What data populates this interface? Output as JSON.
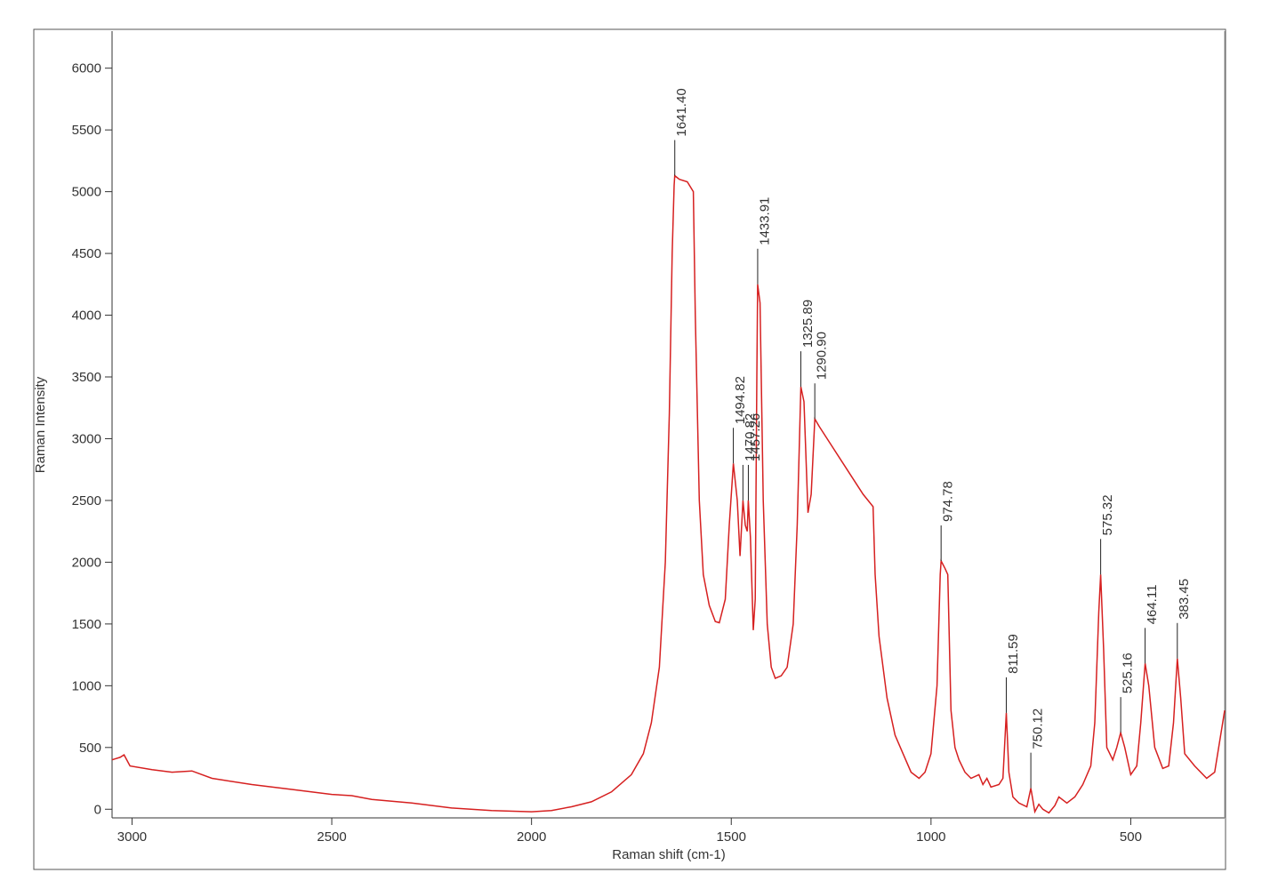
{
  "chart_data": {
    "type": "line",
    "x_label": "Raman shift (cm-1)",
    "y_label": "Raman Intensity",
    "xlim": [
      3050,
      265
    ],
    "ylim": [
      -70,
      6300
    ],
    "xticks": [
      3000,
      2500,
      2000,
      1500,
      1000,
      500
    ],
    "yticks": [
      0,
      500,
      1000,
      1500,
      2000,
      2500,
      3000,
      3500,
      4000,
      4500,
      5000,
      5500,
      6000
    ],
    "x": [
      3050,
      3030,
      3020,
      3005,
      2950,
      2900,
      2850,
      2800,
      2700,
      2600,
      2500,
      2450,
      2400,
      2300,
      2200,
      2100,
      2000,
      1950,
      1900,
      1850,
      1800,
      1750,
      1720,
      1700,
      1680,
      1665,
      1655,
      1648,
      1643,
      1641.4,
      1630,
      1610,
      1595,
      1590,
      1580,
      1570,
      1555,
      1540,
      1530,
      1515,
      1505,
      1494.8,
      1485,
      1478,
      1470.8,
      1465,
      1460,
      1457.3,
      1452,
      1445,
      1440,
      1436,
      1433.9,
      1428,
      1420,
      1410,
      1400,
      1390,
      1375,
      1360,
      1345,
      1335,
      1325.9,
      1318,
      1308,
      1300,
      1290.9,
      1280,
      1250,
      1200,
      1170,
      1145,
      1140,
      1130,
      1110,
      1090,
      1070,
      1050,
      1030,
      1015,
      1000,
      985,
      977,
      974.8,
      965,
      958,
      950,
      940,
      930,
      915,
      900,
      880,
      870,
      860,
      850,
      830,
      820,
      811.6,
      805,
      795,
      780,
      760,
      750.1,
      740,
      730,
      720,
      705,
      690,
      680,
      660,
      640,
      620,
      600,
      590,
      580,
      575.3,
      568,
      560,
      545,
      535,
      525.2,
      515,
      500,
      485,
      475,
      464.1,
      455,
      440,
      420,
      405,
      393,
      383.5,
      375,
      365,
      340,
      310,
      290,
      270,
      265
    ],
    "series": [
      {
        "color": "#d62020",
        "values": [
          400,
          420,
          440,
          350,
          320,
          300,
          310,
          250,
          200,
          160,
          120,
          110,
          80,
          50,
          10,
          -10,
          -20,
          -10,
          20,
          60,
          140,
          280,
          450,
          700,
          1150,
          2000,
          3200,
          4500,
          5050,
          5130,
          5100,
          5080,
          5000,
          4000,
          2500,
          1900,
          1650,
          1520,
          1510,
          1700,
          2300,
          2800,
          2500,
          2050,
          2500,
          2300,
          2250,
          2500,
          2200,
          1450,
          1700,
          3500,
          4250,
          4100,
          2500,
          1500,
          1150,
          1060,
          1080,
          1150,
          1500,
          2300,
          3420,
          3300,
          2400,
          2550,
          3160,
          3100,
          2950,
          2700,
          2550,
          2450,
          1900,
          1400,
          900,
          600,
          450,
          300,
          250,
          300,
          450,
          1000,
          1900,
          2010,
          1950,
          1900,
          800,
          500,
          400,
          300,
          250,
          280,
          200,
          250,
          180,
          200,
          250,
          780,
          300,
          100,
          50,
          20,
          170,
          -20,
          40,
          0,
          -30,
          30,
          100,
          50,
          100,
          200,
          350,
          700,
          1600,
          1900,
          1300,
          500,
          400,
          500,
          620,
          500,
          280,
          350,
          700,
          1180,
          1000,
          500,
          330,
          350,
          700,
          1220,
          900,
          450,
          350,
          250,
          300,
          700,
          800
        ]
      }
    ],
    "annotations": [
      {
        "x": 1641.4,
        "y": 5130,
        "label": "1641.40"
      },
      {
        "x": 1494.82,
        "y": 2800,
        "label": "1494.82"
      },
      {
        "x": 1470.82,
        "y": 2500,
        "label": "1470.82"
      },
      {
        "x": 1457.26,
        "y": 2500,
        "label": "1457.26"
      },
      {
        "x": 1433.91,
        "y": 4250,
        "label": "1433.91"
      },
      {
        "x": 1325.89,
        "y": 3420,
        "label": "1325.89"
      },
      {
        "x": 1290.9,
        "y": 3160,
        "label": "1290.90"
      },
      {
        "x": 974.78,
        "y": 2010,
        "label": "974.78"
      },
      {
        "x": 811.59,
        "y": 780,
        "label": "811.59"
      },
      {
        "x": 750.12,
        "y": 170,
        "label": "750.12"
      },
      {
        "x": 575.32,
        "y": 1900,
        "label": "575.32"
      },
      {
        "x": 525.16,
        "y": 620,
        "label": "525.16"
      },
      {
        "x": 464.11,
        "y": 1180,
        "label": "464.11"
      },
      {
        "x": 383.45,
        "y": 1220,
        "label": "383.45"
      }
    ]
  }
}
